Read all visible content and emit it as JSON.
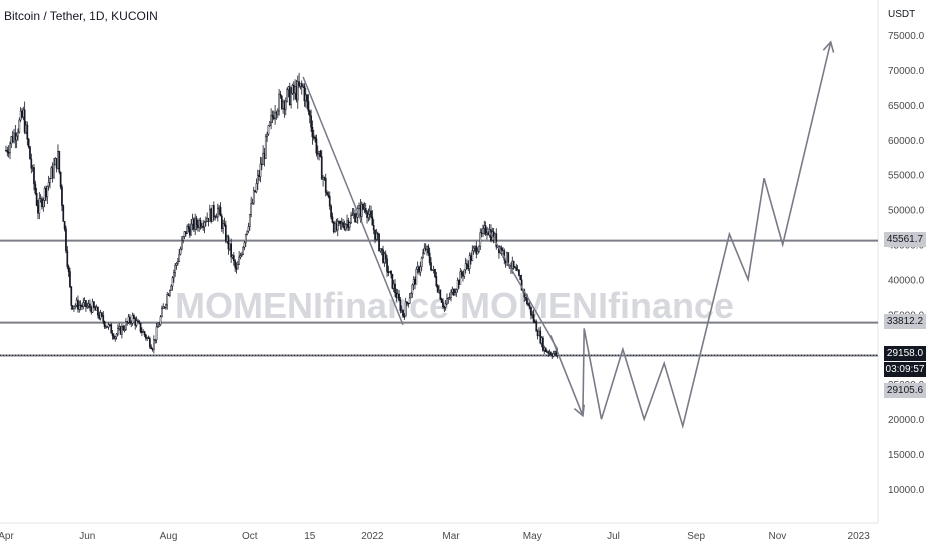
{
  "header": {
    "title": "Bitcoin / Tether, 1D, KUCOIN",
    "unit": "USDT"
  },
  "watermark": {
    "text_left": "MOMENIfinance",
    "text_right": "MOMENIfinance"
  },
  "price_badges": {
    "level_high": "45561.7",
    "level_mid": "33812.2",
    "last_price": "29158.0",
    "countdown": "03:09:57",
    "level_low": "29105.6"
  },
  "colors": {
    "background": "#ffffff",
    "candle": "#131722",
    "projection_line": "#787b86",
    "level_line": "#787b86",
    "badge_gray": "#c8cad0",
    "badge_dark": "#131722",
    "axis_text": "#4a4a4a"
  },
  "chart_data": {
    "type": "line",
    "title": "Bitcoin / Tether, 1D, KUCOIN",
    "ylabel": "USDT",
    "y_ticks": [
      10000,
      15000,
      20000,
      25000,
      30000,
      35000,
      40000,
      45000,
      50000,
      55000,
      60000,
      65000,
      70000,
      75000
    ],
    "y_tick_labels": [
      "10000.0",
      "15000.0",
      "20000.0",
      "25000.0",
      "30000.0",
      "35000.0",
      "40000.0",
      "45000.0",
      "50000.0",
      "55000.0",
      "60000.0",
      "65000.0",
      "70000.0",
      "75000.0"
    ],
    "x_tick_labels": [
      "Apr",
      "Jun",
      "Aug",
      "Oct",
      "15",
      "2022",
      "Mar",
      "May",
      "Jul",
      "Sep",
      "Nov",
      "2023"
    ],
    "x_tick_dates": [
      "2021-04-01",
      "2021-06-01",
      "2021-08-01",
      "2021-10-01",
      "2021-11-15",
      "2022-01-01",
      "2022-03-01",
      "2022-05-01",
      "2022-07-01",
      "2022-09-01",
      "2022-11-01",
      "2023-01-01"
    ],
    "price_path": [
      {
        "date": "2021-04-01",
        "price": 58500
      },
      {
        "date": "2021-04-14",
        "price": 63500
      },
      {
        "date": "2021-04-25",
        "price": 50000
      },
      {
        "date": "2021-05-10",
        "price": 57500
      },
      {
        "date": "2021-05-20",
        "price": 36500
      },
      {
        "date": "2021-06-05",
        "price": 36000
      },
      {
        "date": "2021-06-22",
        "price": 32000
      },
      {
        "date": "2021-07-05",
        "price": 34500
      },
      {
        "date": "2021-07-20",
        "price": 30500
      },
      {
        "date": "2021-08-14",
        "price": 47000
      },
      {
        "date": "2021-09-07",
        "price": 50000
      },
      {
        "date": "2021-09-21",
        "price": 41000
      },
      {
        "date": "2021-10-20",
        "price": 65000
      },
      {
        "date": "2021-11-10",
        "price": 67500
      },
      {
        "date": "2021-12-04",
        "price": 47000
      },
      {
        "date": "2021-12-27",
        "price": 50500
      },
      {
        "date": "2022-01-24",
        "price": 35000
      },
      {
        "date": "2022-02-10",
        "price": 44500
      },
      {
        "date": "2022-02-24",
        "price": 36000
      },
      {
        "date": "2022-03-28",
        "price": 47500
      },
      {
        "date": "2022-04-20",
        "price": 40500
      },
      {
        "date": "2022-05-10",
        "price": 30000
      },
      {
        "date": "2022-05-20",
        "price": 29158
      }
    ],
    "downtrend_lines": [
      [
        {
          "date": "2021-11-10",
          "price": 69000
        },
        {
          "date": "2022-01-24",
          "price": 33500
        }
      ],
      [
        {
          "date": "2022-03-28",
          "price": 47500
        },
        {
          "date": "2022-05-20",
          "price": 30000
        }
      ]
    ],
    "projection": [
      {
        "date": "2022-05-15",
        "price": 32000
      },
      {
        "date": "2022-06-08",
        "price": 20500
      },
      {
        "date": "2022-06-09",
        "price": 33000
      },
      {
        "date": "2022-06-22",
        "price": 20000
      },
      {
        "date": "2022-07-08",
        "price": 30000
      },
      {
        "date": "2022-07-24",
        "price": 20000
      },
      {
        "date": "2022-08-08",
        "price": 28000
      },
      {
        "date": "2022-08-22",
        "price": 19000
      },
      {
        "date": "2022-09-26",
        "price": 46500
      },
      {
        "date": "2022-10-10",
        "price": 40000
      },
      {
        "date": "2022-10-22",
        "price": 54500
      },
      {
        "date": "2022-11-05",
        "price": 45000
      },
      {
        "date": "2022-12-11",
        "price": 74000
      }
    ],
    "horizontal_levels": [
      45561.7,
      33812.2,
      29105.6
    ],
    "last_price": 29158.0,
    "grid": false,
    "legend": "none"
  }
}
